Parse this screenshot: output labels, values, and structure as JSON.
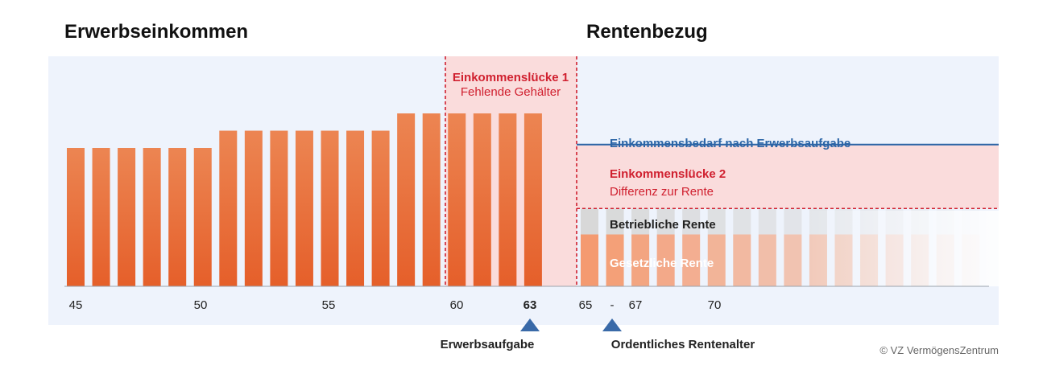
{
  "headings": {
    "left": "Erwerbseinkommen",
    "right": "Rentenbezug"
  },
  "colors": {
    "panel_bg": "#eef3fc",
    "gap_fill": "#fadcdc",
    "gap_text": "#d0202f",
    "need_line": "#2a64a6",
    "bar_top": "#ea7f4b",
    "bar_bottom": "#e8632c",
    "pension_gesetzlich": "#f49a70",
    "pension_betrieblich": "#d8d8d8",
    "marker": "#3a6aa8"
  },
  "chart_data": {
    "type": "bar",
    "x_tick_labels": [
      "45",
      "50",
      "55",
      "60",
      "63",
      "65",
      "-",
      "67",
      "70"
    ],
    "income_bars": {
      "ages": [
        45,
        46,
        47,
        48,
        49,
        50,
        51,
        52,
        53,
        54,
        55,
        56,
        57,
        58,
        59,
        60,
        61,
        62,
        63
      ],
      "values": [
        8,
        8,
        8,
        8,
        8,
        8,
        9,
        9,
        9,
        9,
        9,
        9,
        9,
        10,
        10,
        10,
        10,
        10,
        10
      ]
    },
    "pension_bars": {
      "count": 16,
      "gesetzliche_rente_level": 3,
      "betriebliche_rente_level": 4.5
    },
    "need_level": 8.2,
    "gap2_level": 4.5,
    "annotations": {
      "gap1_line1": "Einkommenslücke 1",
      "gap1_line2": "Fehlende Gehälter",
      "need_label": "Einkommensbedarf nach Erwerbsaufgabe",
      "gap2_line1": "Einkommenslücke 2",
      "gap2_line2": "Differenz zur Rente",
      "betriebliche": "Betriebliche Rente",
      "gesetzliche": "Gesetzliche Rente"
    },
    "markers": [
      {
        "label": "Erwerbsaufgabe",
        "age": "63"
      },
      {
        "label": "Ordentliches Rentenalter",
        "age": "-"
      }
    ]
  },
  "credit": "© VZ VermögensZentrum"
}
